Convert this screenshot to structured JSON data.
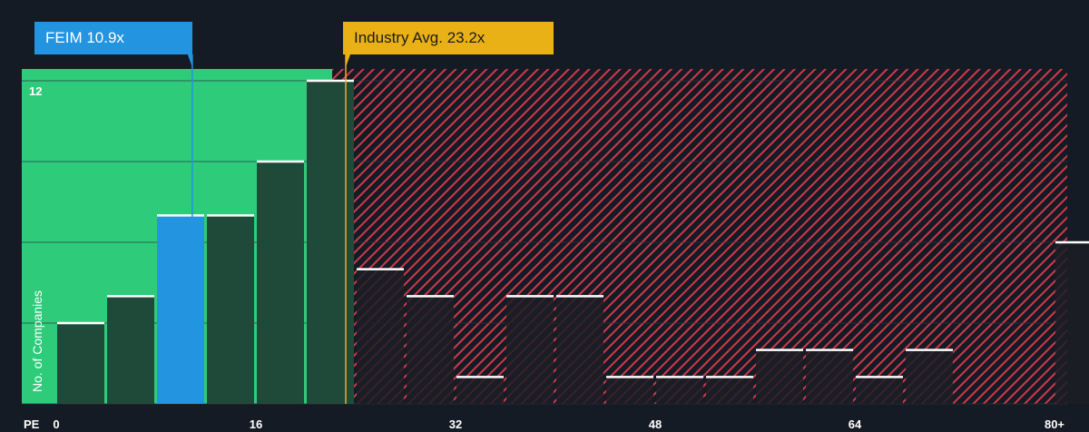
{
  "chart_data": {
    "type": "bar",
    "title": "",
    "xlabel": "PE",
    "ylabel": "No. of Companies",
    "x_ticks": [
      "0",
      "16",
      "32",
      "48",
      "64",
      "80+"
    ],
    "y_ticks": [
      "12"
    ],
    "xlim": [
      0,
      80
    ],
    "ylim": [
      0,
      12.4
    ],
    "bin_width": 4,
    "bins": [
      {
        "from": 0,
        "count": 3
      },
      {
        "from": 4,
        "count": 4
      },
      {
        "from": 8,
        "count": 7
      },
      {
        "from": 12,
        "count": 7
      },
      {
        "from": 16,
        "count": 9
      },
      {
        "from": 20,
        "count": 12
      },
      {
        "from": 24,
        "count": 5
      },
      {
        "from": 28,
        "count": 4
      },
      {
        "from": 32,
        "count": 1
      },
      {
        "from": 36,
        "count": 4
      },
      {
        "from": 40,
        "count": 4
      },
      {
        "from": 44,
        "count": 1
      },
      {
        "from": 48,
        "count": 1
      },
      {
        "from": 52,
        "count": 1
      },
      {
        "from": 56,
        "count": 2
      },
      {
        "from": 60,
        "count": 2
      },
      {
        "from": 64,
        "count": 1
      },
      {
        "from": 68,
        "count": 2
      },
      {
        "from": 80,
        "count": 6
      }
    ],
    "company": {
      "label": "FEIM 10.9x",
      "value": 10.9,
      "color": "#2394e0"
    },
    "industry": {
      "label": "Industry Avg. 23.2x",
      "value": 23.2,
      "color": "#e9b115"
    },
    "colors": {
      "background": "#151b24",
      "below_avg_zone": "#2ecc7a",
      "above_avg_zone_stripe": "#d0394a",
      "bar_below": "#1f4a3a",
      "bar_above": "#1c1d24",
      "bar_top_line": "#ffffff",
      "gridline": "#2d3540"
    },
    "grid": true
  }
}
